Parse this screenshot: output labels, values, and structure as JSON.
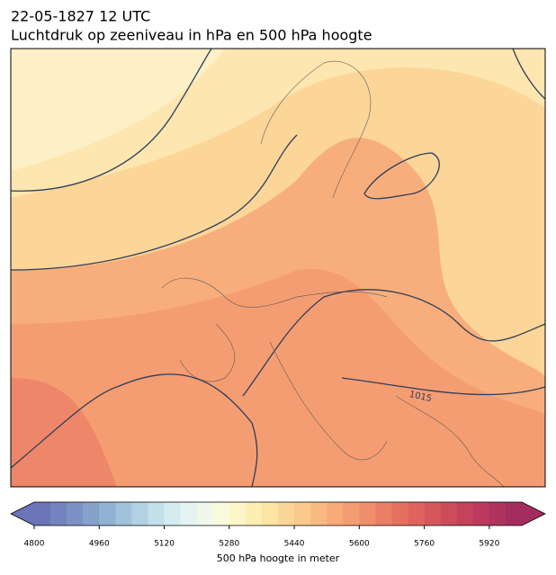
{
  "header": {
    "date": "22-05-1827 12 UTC",
    "title": "Luchtdruk op zeeniveau in hPa en 500 hPa hoogte"
  },
  "map": {
    "contour_labels": [
      "1015"
    ]
  },
  "colorbar": {
    "label": "500 hPa hoogte in meter",
    "lim": [
      4800,
      6000
    ],
    "ticks": [
      4800,
      4960,
      5120,
      5280,
      5440,
      5600,
      5760,
      5920
    ],
    "colors": [
      "#6a74b6",
      "#7383bd",
      "#7c92c4",
      "#86a2cb",
      "#92b2d3",
      "#a0c2da",
      "#b0d2e3",
      "#c2e0ea",
      "#d4ecf0",
      "#e4f3f2",
      "#f0f8ec",
      "#f8fadc",
      "#fdf6c6",
      "#fdeeb4",
      "#fde3a4",
      "#fcd696",
      "#fbc98a",
      "#f9ba80",
      "#f7ab78",
      "#f49c72",
      "#f08d6c",
      "#eb7e66",
      "#e57060",
      "#de635d",
      "#d6575b",
      "#ce4c5a",
      "#c5425b",
      "#bb3a5d",
      "#b0335e",
      "#a52c5f"
    ]
  }
}
